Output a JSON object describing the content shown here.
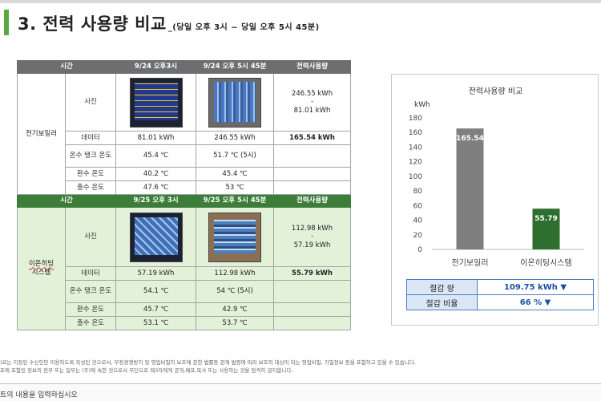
{
  "header": {
    "title": "3. 전력 사용량 비교",
    "subtitle": "_(당일 오후 3시 ~ 당일 오후 5시 45분)"
  },
  "table1": {
    "headers": [
      "시간",
      "9/24 오후3시",
      "9/24 오후 5시 45분",
      "전력사용량"
    ],
    "group": "전기보일러",
    "photo_label": "사진",
    "usage_line1": "246.55 kWh",
    "usage_dash": "-",
    "usage_line2": "81.01 kWh",
    "rows": [
      {
        "label": "데이터",
        "a": "81.01 kWh",
        "b": "246.55 kWh",
        "c": "165.54  kWh"
      },
      {
        "label": "온수 탱크 온도",
        "a": "45.4 ℃",
        "b": "51.7 ℃ (5시)",
        "c": ""
      },
      {
        "label": "환수 온도",
        "a": "40.2 ℃",
        "b": "45.4 ℃",
        "c": ""
      },
      {
        "label": "출수 온도",
        "a": "47.6 ℃",
        "b": "53 ℃",
        "c": ""
      }
    ]
  },
  "table2": {
    "headers": [
      "시간",
      "9/25 오후 3시",
      "9/25 오후 5시 45분",
      "전력사용량"
    ],
    "group_line1": "이온히팅",
    "group_line2": "시스템",
    "photo_label": "사진",
    "usage_line1": "112.98 kWh",
    "usage_dash": "-",
    "usage_line2": "57.19 kWh",
    "rows": [
      {
        "label": "데이터",
        "a": "57.19 kWh",
        "b": "112.98 kWh",
        "c": "55.79  kWh"
      },
      {
        "label": "온수 탱크 온도",
        "a": "54.1 ℃",
        "b": "54 ℃ (5시)",
        "c": ""
      },
      {
        "label": "환수 온도",
        "a": "45.7 ℃",
        "b": "42.9 ℃",
        "c": ""
      },
      {
        "label": "출수 온도",
        "a": "53.1 ℃",
        "b": "53.7 ℃",
        "c": ""
      }
    ]
  },
  "chart_data": {
    "type": "bar",
    "title": "전력사용량 비교",
    "ylabel": "kWh",
    "categories": [
      "전기보일러",
      "이온히팅시스템"
    ],
    "values": [
      165.54,
      55.79
    ],
    "ylim": [
      0,
      180
    ],
    "yticks": [
      "0",
      "20",
      "40",
      "60",
      "80",
      "100",
      "120",
      "140",
      "160",
      "180"
    ],
    "colors": [
      "#7f7f7f",
      "#2e6e2e"
    ],
    "grid": false
  },
  "savings": {
    "amount_label": "절감 량",
    "amount_value": "109.75 kWh ▼",
    "rate_label": "절감 비율",
    "rate_value": "66 % ▼"
  },
  "footer": {
    "line1": ")료는 지정된 수신인만 이용하도록 작성된 것으로서, 부정경쟁방지 및 영업비밀의 보호에 관한 법률등 관계 법령에 따라 보호의 대상이 되는 영업비밀, 기밀정보 등을 포함하고 있을 수 있습니다.",
    "line2": "포에 포함된 정보의 전부 또는 일부는 (주)에 속한 것으로서 무단으로 제3자에게 공개,배포,복사 또는 사용하는 것을 엄격히 금지합니다.",
    "notes_placeholder": "트의 내용을 입력하십시오"
  },
  "colors": {
    "accent_green": "#5aa844",
    "header_gray": "#6d6e70",
    "header_green": "#3c7d3a",
    "light_green": "#e3f1d9",
    "save_blue": "#1f4fa0"
  }
}
